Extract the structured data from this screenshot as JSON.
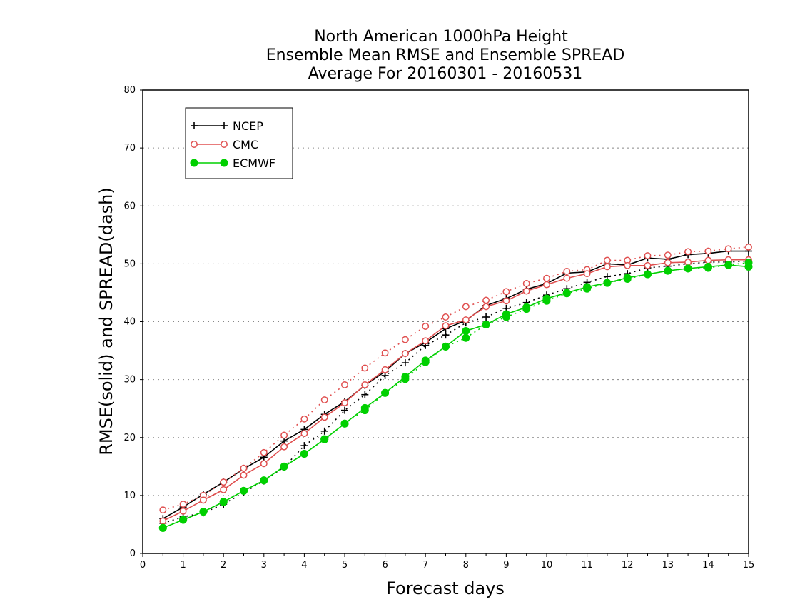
{
  "chart_data": {
    "type": "line",
    "title_lines": [
      "North American 1000hPa Height",
      "Ensemble Mean RMSE and Ensemble SPREAD",
      "Average For 20160301 - 20160531"
    ],
    "xlabel": "Forecast days",
    "ylabel": "RMSE(solid) and SPREAD(dash)",
    "xlim": [
      0,
      15
    ],
    "ylim": [
      0,
      80
    ],
    "xticks": [
      "0",
      "1",
      "2",
      "3",
      "4",
      "5",
      "6",
      "7",
      "8",
      "9",
      "10",
      "11",
      "12",
      "13",
      "14",
      "15"
    ],
    "yticks": [
      "0",
      "10",
      "20",
      "30",
      "40",
      "50",
      "60",
      "70",
      "80"
    ],
    "grid": "horizontal dotted",
    "legend_position": "top-left",
    "x": [
      0.5,
      1,
      1.5,
      2,
      2.5,
      3,
      3.5,
      4,
      4.5,
      5,
      5.5,
      6,
      6.5,
      7,
      7.5,
      8,
      8.5,
      9,
      9.5,
      10,
      10.5,
      11,
      11.5,
      12,
      12.5,
      13,
      13.5,
      14,
      14.5,
      15
    ],
    "series": [
      {
        "name": "NCEP",
        "color": "#000000",
        "marker": "plus",
        "rmse": [
          6.0,
          8.0,
          10.2,
          12.3,
          14.6,
          16.6,
          19.4,
          21.4,
          24.0,
          26.2,
          29.0,
          31.4,
          34.5,
          36.4,
          38.8,
          40.2,
          42.8,
          44.0,
          45.6,
          46.6,
          48.4,
          48.6,
          50.0,
          49.8,
          51.0,
          50.8,
          51.6,
          51.8,
          52.2,
          52.2
        ],
        "spread": [
          5.2,
          6.3,
          7.0,
          8.5,
          10.5,
          12.5,
          14.9,
          18.6,
          21.1,
          24.7,
          27.4,
          30.7,
          32.9,
          35.9,
          37.7,
          39.8,
          40.8,
          42.3,
          43.3,
          44.6,
          45.7,
          46.8,
          47.8,
          48.3,
          49.3,
          49.6,
          50.0,
          50.3,
          50.3,
          50.5
        ]
      },
      {
        "name": "CMC",
        "color": "#e05050",
        "marker": "open-circle",
        "rmse": [
          5.6,
          7.3,
          9.2,
          11.0,
          13.5,
          15.5,
          18.4,
          20.7,
          23.5,
          26.0,
          29.1,
          31.7,
          34.5,
          36.7,
          39.3,
          40.3,
          42.6,
          43.6,
          45.3,
          46.4,
          47.5,
          48.3,
          49.5,
          49.7,
          49.7,
          50.2,
          50.3,
          50.6,
          50.7,
          50.7
        ],
        "spread": [
          7.5,
          8.5,
          10.0,
          12.3,
          14.7,
          17.4,
          20.4,
          23.2,
          26.5,
          29.1,
          32.0,
          34.6,
          36.9,
          39.2,
          40.8,
          42.6,
          43.7,
          45.2,
          46.6,
          47.5,
          48.7,
          49.0,
          50.6,
          50.6,
          51.4,
          51.5,
          52.1,
          52.2,
          52.6,
          52.9
        ]
      },
      {
        "name": "ECMWF",
        "color": "#00d000",
        "marker": "filled-circle",
        "rmse": [
          4.4,
          5.8,
          7.2,
          8.9,
          10.8,
          12.6,
          15.0,
          17.2,
          19.7,
          22.4,
          25.1,
          27.7,
          30.5,
          33.3,
          35.7,
          38.4,
          39.5,
          41.3,
          42.5,
          44.0,
          45.0,
          46.0,
          46.7,
          47.6,
          48.2,
          48.8,
          49.2,
          49.5,
          49.8,
          49.5
        ],
        "spread": [
          4.4,
          5.8,
          7.2,
          8.9,
          10.8,
          12.6,
          15.0,
          17.2,
          19.7,
          22.4,
          24.7,
          27.7,
          30.1,
          33.0,
          35.7,
          37.2,
          39.5,
          40.8,
          42.2,
          43.6,
          44.9,
          45.7,
          46.7,
          47.4,
          48.2,
          48.8,
          49.2,
          49.3,
          49.8,
          50.2
        ]
      }
    ]
  }
}
